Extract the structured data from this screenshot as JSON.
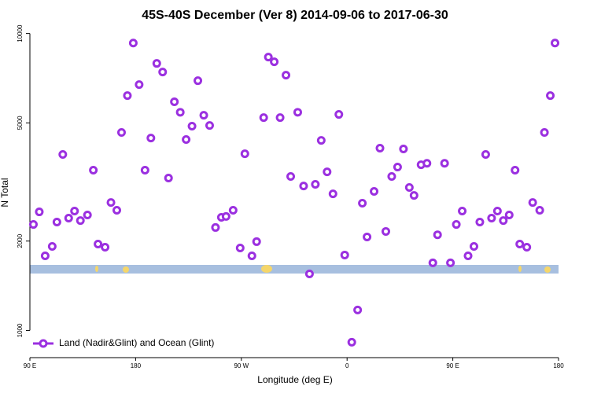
{
  "chart_data": {
    "type": "scatter",
    "title": "45S-40S December (Ver 8)   2014-09-06 to 2017-06-30",
    "x_label": "Longitude (deg E)",
    "y_label": "N Total",
    "y_scale": "log",
    "xlim": [
      90,
      540
    ],
    "ylim": [
      810,
      10800
    ],
    "xticks": [
      {
        "value": 90,
        "label": "90 E"
      },
      180,
      {
        "value": 270,
        "label": "90 W"
      },
      {
        "value": 360,
        "label": "0"
      },
      {
        "value": 450,
        "label": "90 E"
      },
      {
        "value": 540,
        "label": "180"
      }
    ],
    "yticks": [
      1000,
      2000,
      5000,
      10000
    ],
    "legend": "bottom-left",
    "series": [
      {
        "name": "Land (Nadir&Glint) and Ocean (Glint)",
        "color": "#9b30e0",
        "x": [
          93,
          98,
          103,
          109,
          113,
          118,
          123,
          128,
          133,
          139,
          144,
          148,
          154,
          159,
          164,
          168,
          173,
          178,
          183,
          188,
          193,
          198,
          203,
          208,
          213,
          218,
          223,
          228,
          233,
          238,
          243,
          248,
          253,
          257,
          263,
          269,
          273,
          279,
          283,
          289,
          293,
          298,
          303,
          308,
          312,
          318,
          323,
          328,
          333,
          338,
          343,
          348,
          353,
          358,
          364,
          369,
          373,
          377,
          383,
          388,
          393,
          398,
          403,
          408,
          413,
          417,
          423,
          428,
          433,
          437,
          443,
          448,
          453,
          458,
          463,
          468,
          473,
          478,
          483,
          488,
          493,
          498,
          503,
          507,
          513,
          518,
          524,
          528,
          533,
          537
        ],
        "values": [
          2275,
          2508,
          1783,
          1919,
          2318,
          3915,
          2389,
          2524,
          2345,
          2448,
          3465,
          1954,
          1907,
          2698,
          2540,
          4642,
          6180,
          9290,
          6730,
          3465,
          4446,
          7930,
          7420,
          3260,
          5890,
          5430,
          4395,
          4875,
          6935,
          5305,
          4900,
          2222,
          2404,
          2420,
          2540,
          1896,
          3936,
          1783,
          1991,
          5210,
          8330,
          8030,
          5210,
          7240,
          3300,
          5430,
          3066,
          1550,
          3105,
          4365,
          3420,
          2885,
          5340,
          1795,
          913,
          1172,
          2683,
          2065,
          2940,
          4110,
          2155,
          3300,
          3550,
          4085,
          3030,
          2850,
          3615,
          3655,
          1690,
          2100,
          3655,
          1690,
          2275,
          2524,
          1783,
          1919,
          2318,
          3915,
          2389,
          2524,
          2345,
          2448,
          3465,
          1954,
          1907,
          2698,
          2540,
          4642,
          6180,
          9290
        ]
      }
    ]
  }
}
